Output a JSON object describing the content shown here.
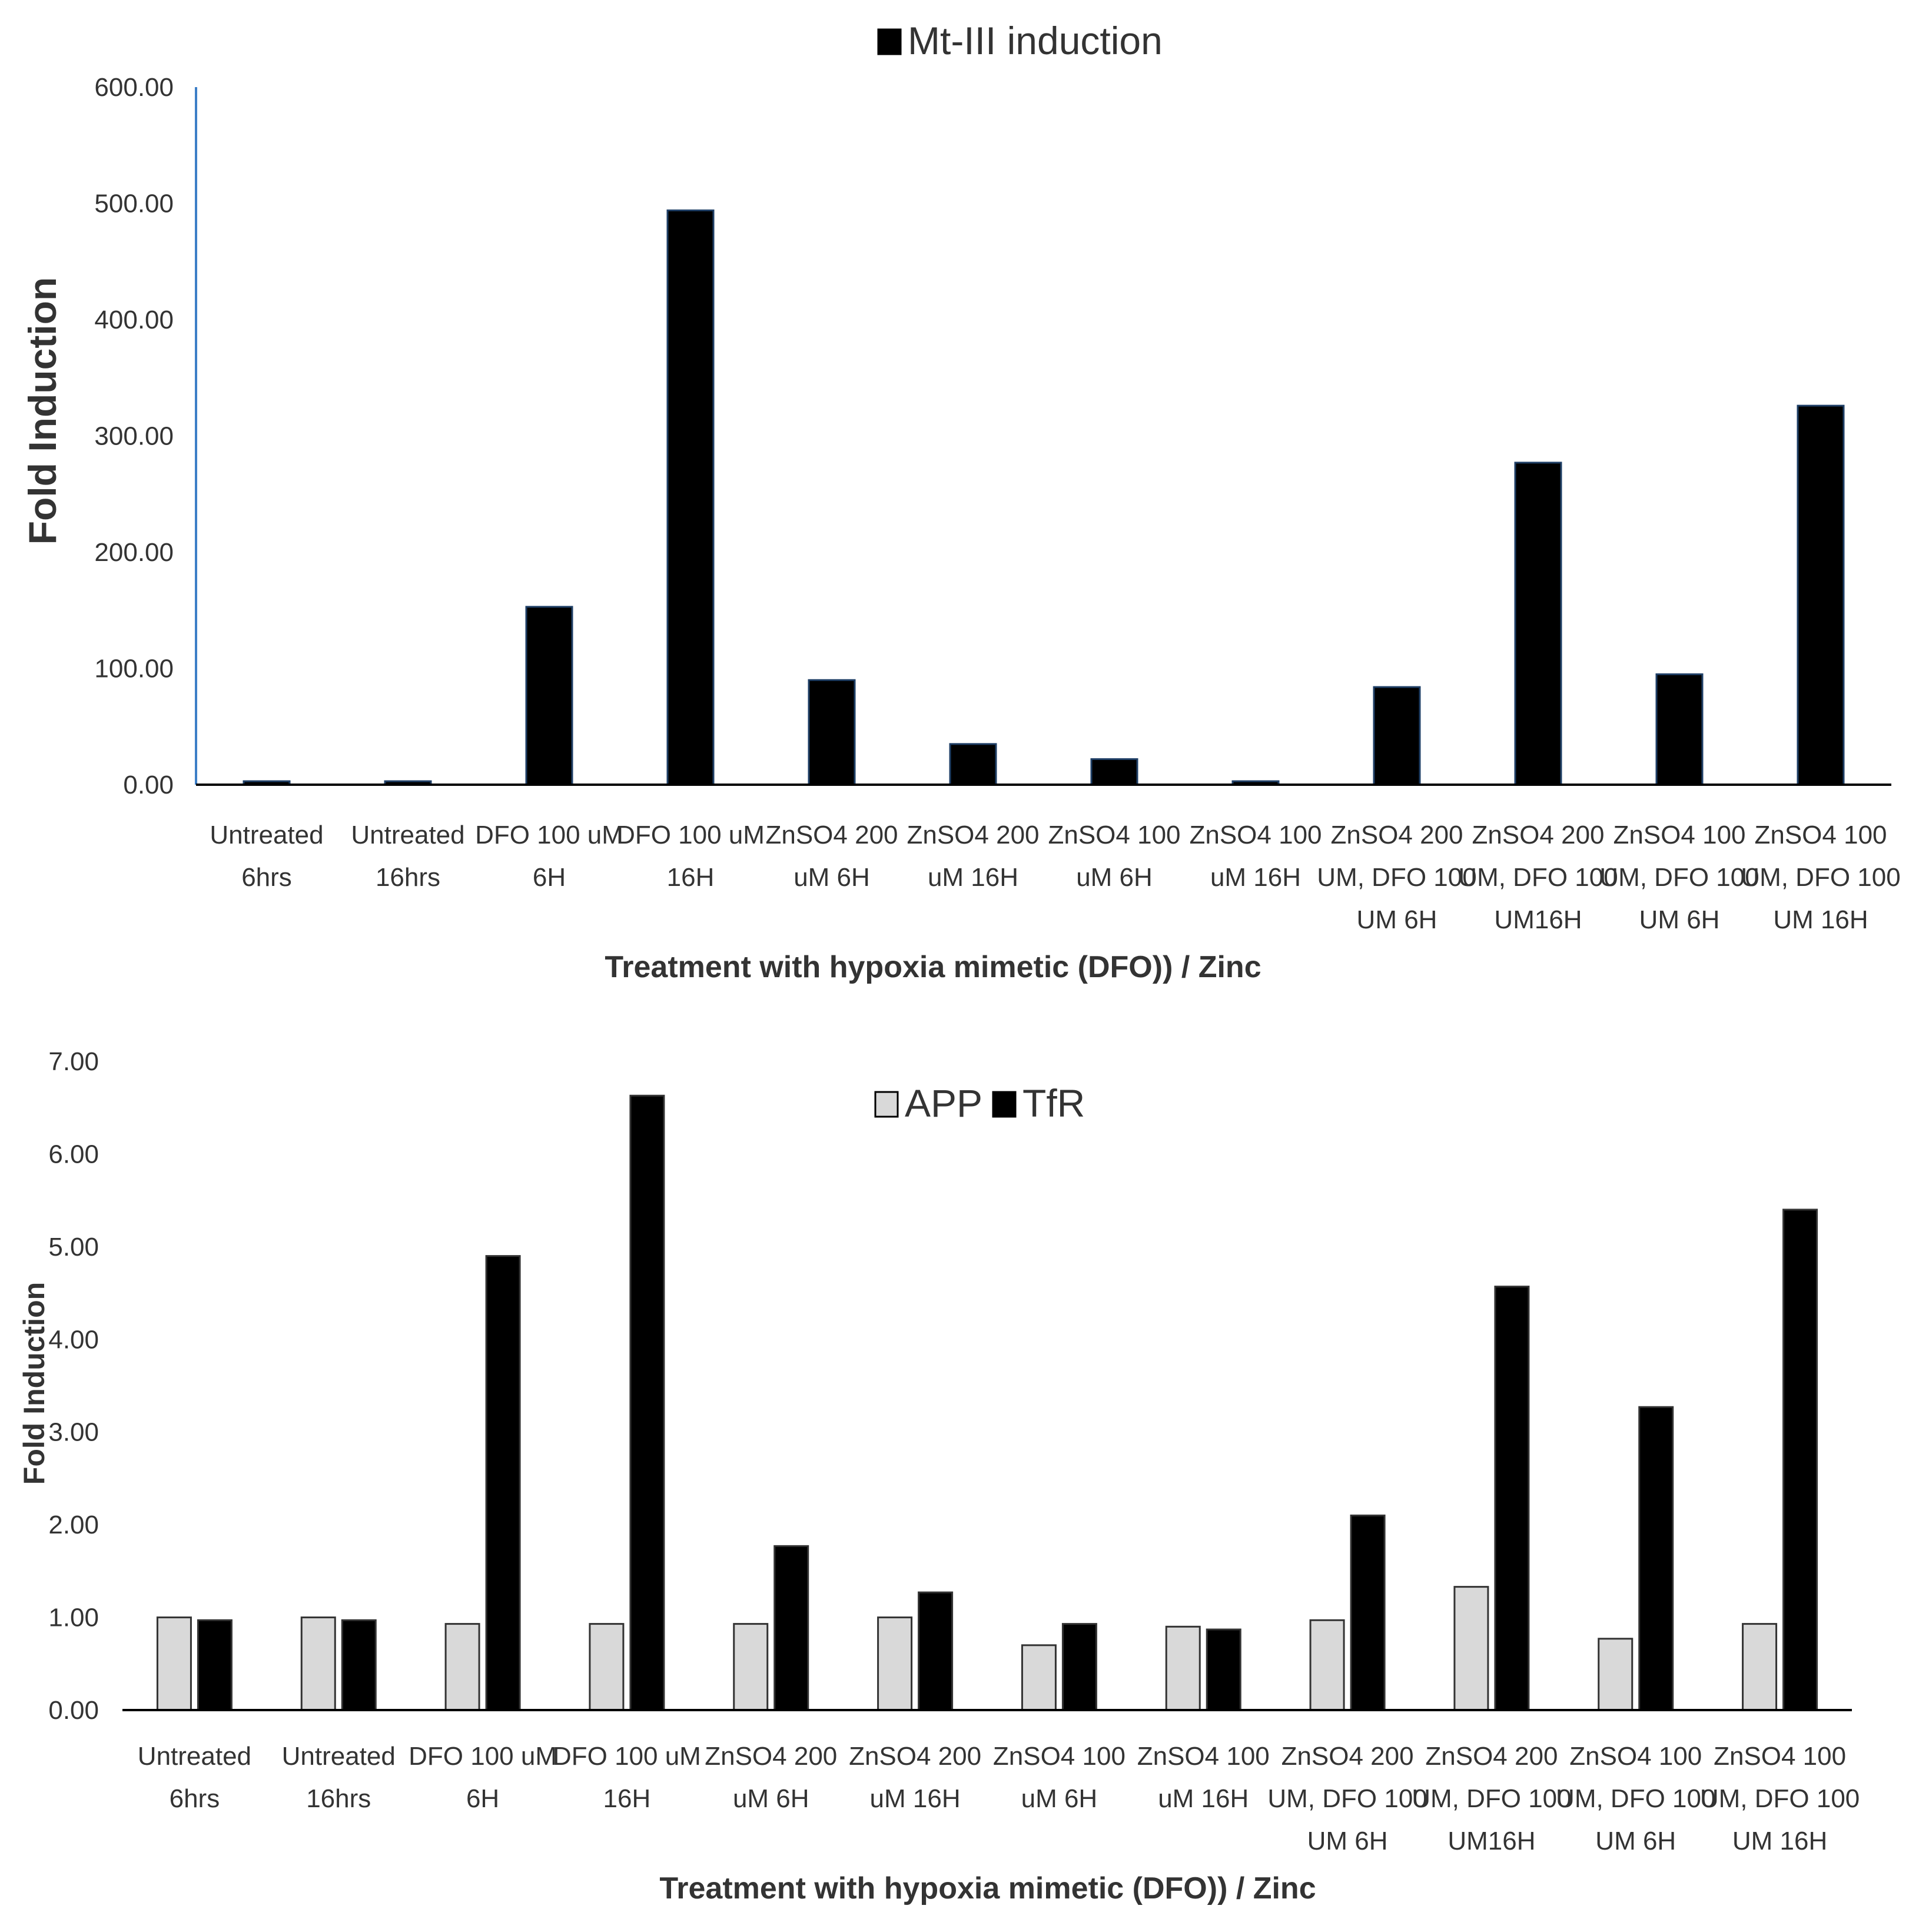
{
  "chart_data": [
    {
      "type": "bar",
      "title": "",
      "xlabel": "Treatment  with hypoxia mimetic (DFO)) / Zinc",
      "ylabel": "Fold Induction",
      "ylim": [
        0,
        600
      ],
      "yticks": [
        "0.00",
        "100.00",
        "200.00",
        "300.00",
        "400.00",
        "500.00",
        "600.00"
      ],
      "legend_position": "top-center",
      "categories": [
        [
          "Untreated",
          "6hrs"
        ],
        [
          "Untreated",
          "16hrs"
        ],
        [
          "DFO 100 uM",
          "6H"
        ],
        [
          "DFO 100 uM",
          "16H"
        ],
        [
          "ZnSO4 200",
          "uM 6H"
        ],
        [
          "ZnSO4 200",
          "uM 16H"
        ],
        [
          "ZnSO4 100",
          "uM 6H"
        ],
        [
          "ZnSO4 100",
          "uM 16H"
        ],
        [
          "ZnSO4 200",
          "UM, DFO 100",
          "UM 6H"
        ],
        [
          "ZnSO4 200",
          "UM, DFO 100",
          "UM16H"
        ],
        [
          "ZnSO4 100",
          "UM, DFO 100",
          "UM 6H"
        ],
        [
          "ZnSO4 100",
          "UM, DFO 100",
          "UM 16H"
        ]
      ],
      "series": [
        {
          "name": "Mt-III induction",
          "color": "#000000",
          "values": [
            3,
            3,
            153,
            494,
            90,
            35,
            22,
            3,
            84,
            277,
            95,
            326
          ]
        }
      ]
    },
    {
      "type": "bar",
      "title": "",
      "xlabel": "Treatment  with hypoxia mimetic (DFO)) / Zinc",
      "ylabel": "Fold Induction",
      "ylim": [
        0,
        7
      ],
      "yticks": [
        "0.00",
        "1.00",
        "2.00",
        "3.00",
        "4.00",
        "5.00",
        "6.00",
        "7.00"
      ],
      "legend_position": "top-center",
      "categories": [
        [
          "Untreated",
          "6hrs"
        ],
        [
          "Untreated",
          "16hrs"
        ],
        [
          "DFO 100 uM",
          "6H"
        ],
        [
          "DFO 100 uM",
          "16H"
        ],
        [
          "ZnSO4 200",
          "uM 6H"
        ],
        [
          "ZnSO4 200",
          "uM 16H"
        ],
        [
          "ZnSO4 100",
          "uM 6H"
        ],
        [
          "ZnSO4 100",
          "uM 16H"
        ],
        [
          "ZnSO4 200",
          "UM, DFO 100",
          "UM 6H"
        ],
        [
          "ZnSO4 200",
          "UM, DFO 100",
          "UM16H"
        ],
        [
          "ZnSO4 100",
          "UM, DFO 100",
          "UM 6H"
        ],
        [
          "ZnSO4 100",
          "UM, DFO 100",
          "UM 16H"
        ]
      ],
      "series": [
        {
          "name": "APP",
          "color": "#d9d9d9",
          "values": [
            1.0,
            1.0,
            0.93,
            0.93,
            0.93,
            1.0,
            0.7,
            0.9,
            0.97,
            1.33,
            0.77,
            0.93
          ]
        },
        {
          "name": "TfR",
          "color": "#000000",
          "values": [
            0.97,
            0.97,
            4.9,
            6.63,
            1.77,
            1.27,
            0.93,
            0.87,
            2.1,
            4.57,
            3.27,
            5.4
          ]
        }
      ]
    }
  ]
}
